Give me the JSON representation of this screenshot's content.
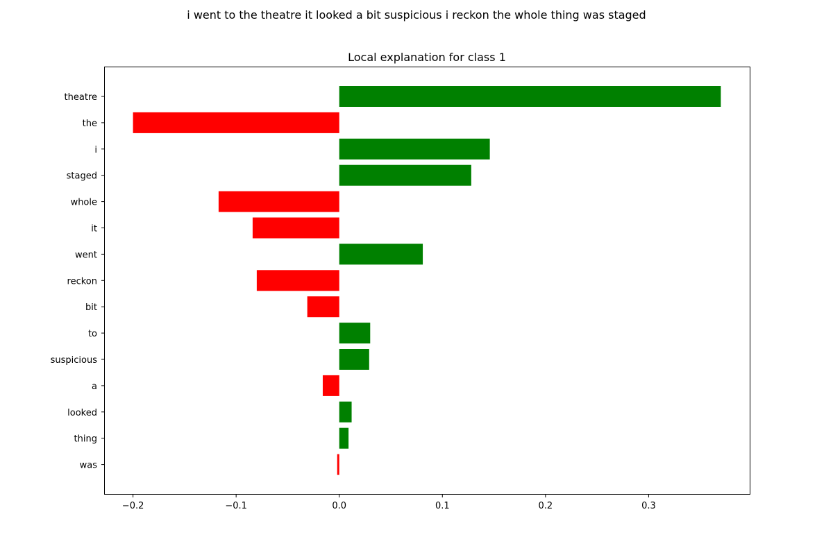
{
  "figure": {
    "suptitle": "i went to the theatre it looked a bit suspicious i reckon the whole thing was staged"
  },
  "chart_data": {
    "type": "bar",
    "orientation": "horizontal",
    "title": "Local explanation for class 1",
    "xlabel": "",
    "ylabel": "",
    "xlim": [
      -0.228,
      0.398
    ],
    "xticks": [
      -0.2,
      -0.1,
      0.0,
      0.1,
      0.2,
      0.3
    ],
    "xtick_labels": [
      "−0.2",
      "−0.1",
      "0.0",
      "0.1",
      "0.2",
      "0.3"
    ],
    "grid": false,
    "legend": "none",
    "positive_color": "#008000",
    "negative_color": "#ff0000",
    "categories": [
      "theatre",
      "the",
      "i",
      "staged",
      "whole",
      "it",
      "went",
      "reckon",
      "bit",
      "to",
      "suspicious",
      "a",
      "looked",
      "thing",
      "was"
    ],
    "values": [
      0.37,
      -0.2,
      0.146,
      0.128,
      -0.117,
      -0.084,
      0.081,
      -0.08,
      -0.031,
      0.03,
      0.029,
      -0.016,
      0.012,
      0.009,
      -0.002
    ]
  }
}
